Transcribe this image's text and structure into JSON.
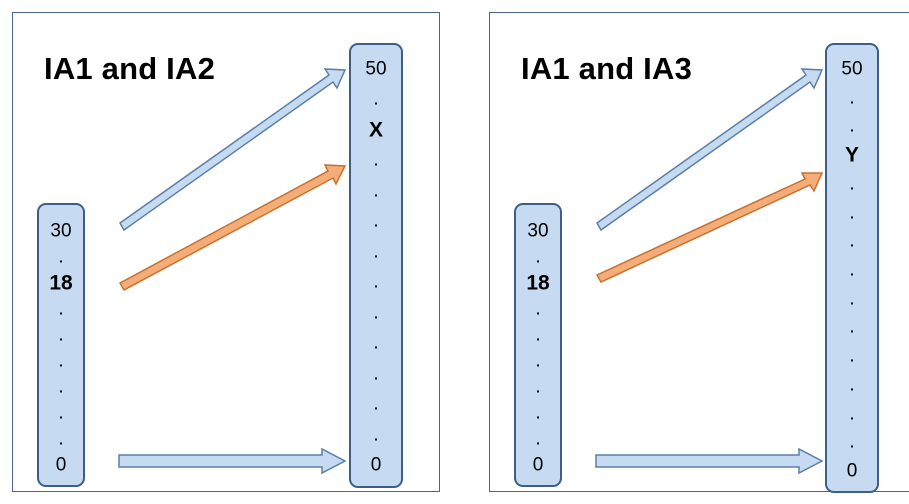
{
  "panels": [
    {
      "title": "IA1 and IA2",
      "source_scale": {
        "ticks": [
          "30",
          ".",
          "18",
          ".",
          ".",
          ".",
          ".",
          ".",
          ".",
          "0"
        ],
        "bold": [
          "18"
        ]
      },
      "target_scale": {
        "ticks": [
          "50",
          ".",
          "X",
          ".",
          ".",
          ".",
          ".",
          ".",
          ".",
          ".",
          ".",
          ".",
          ".",
          "0"
        ],
        "bold": [
          "X"
        ]
      }
    },
    {
      "title": "IA1 and IA3",
      "source_scale": {
        "ticks": [
          "30",
          ".",
          "18",
          ".",
          ".",
          ".",
          ".",
          ".",
          ".",
          "0"
        ],
        "bold": [
          "18"
        ]
      },
      "target_scale": {
        "ticks": [
          "50",
          ".",
          ".",
          "Y",
          ".",
          ".",
          ".",
          ".",
          ".",
          ".",
          ".",
          ".",
          ".",
          ".",
          "0"
        ],
        "bold": [
          "Y"
        ]
      }
    }
  ],
  "colors": {
    "scale_fill": "#c6dbf2",
    "scale_border": "#3d5f86",
    "arrow_blue_fill": "#c6dbf2",
    "arrow_blue_stroke": "#5b7fa8",
    "arrow_orange_fill": "#f4ad78",
    "arrow_orange_stroke": "#c9722f",
    "panel_border": "#4b6687"
  }
}
